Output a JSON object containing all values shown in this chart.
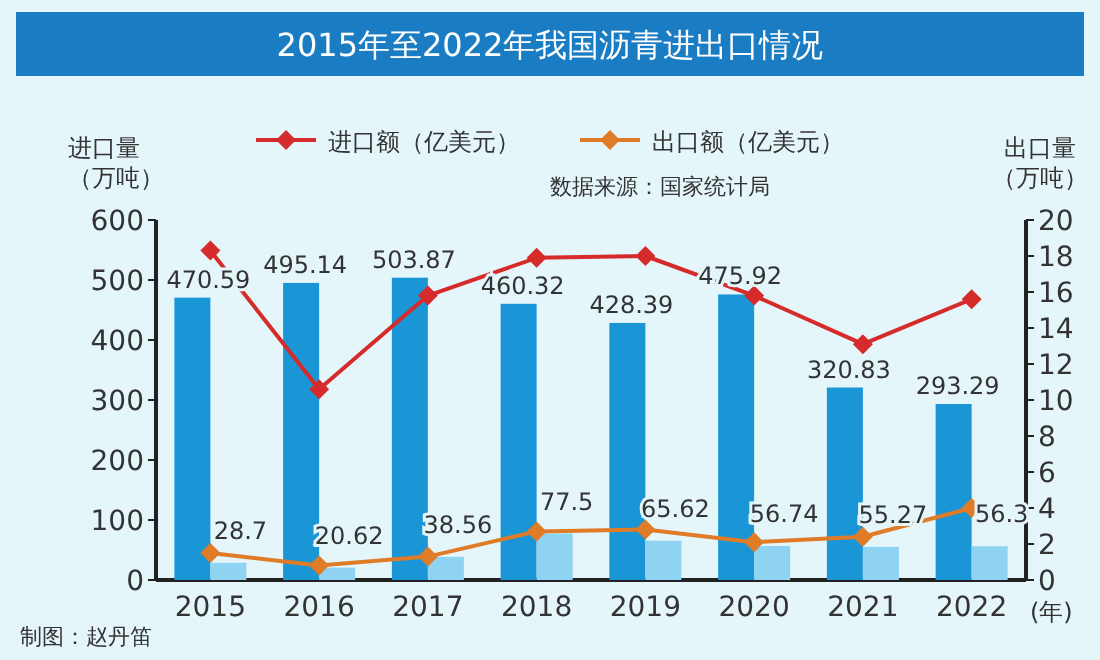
{
  "chart_data": {
    "type": "bar",
    "title": "2015年至2022年我国沥青进出口情况",
    "subtitle": "数据来源：国家统计局",
    "ylabel": "进口量（万吨）",
    "y2label": "出口量（万吨）",
    "xlabel": "(年)",
    "annotations": [
      "制图：赵丹笛"
    ],
    "categories": [
      "2015",
      "2016",
      "2017",
      "2018",
      "2019",
      "2020",
      "2021",
      "2022"
    ],
    "series": [
      {
        "color": "#1a95d5",
        "values": [
          470.59,
          495.14,
          503.87,
          460.32,
          428.39,
          475.92,
          320.83,
          293.29
        ],
        "value_labels": [
          "470.59",
          "495.14",
          "503.87",
          "460.32",
          "428.39",
          "475.92",
          "320.83",
          "293.29"
        ]
      },
      {
        "color": "#8ed3f2",
        "values": [
          28.7,
          20.62,
          38.56,
          77.5,
          65.62,
          56.74,
          55.27,
          56.3
        ],
        "value_labels": [
          "28.7",
          "20.62",
          "38.56",
          "77.5",
          "65.62",
          "56.74",
          "55.27",
          "56.3"
        ]
      },
      {
        "type": "line",
        "name": "进口额（亿美元）",
        "color": "#d62b2b",
        "axis": "y2",
        "values": [
          18.3,
          10.6,
          15.8,
          17.9,
          18.0,
          15.8,
          13.1,
          15.6
        ]
      },
      {
        "type": "line",
        "name": "出口额（亿美元）",
        "color": "#e07b27",
        "axis": "y2",
        "values": [
          1.5,
          0.8,
          1.3,
          2.7,
          2.8,
          2.1,
          2.4,
          4.0
        ]
      }
    ],
    "ylim": [
      0,
      600
    ],
    "yticks": [
      0,
      100,
      200,
      300,
      400,
      500,
      600
    ],
    "y2lim": [
      0,
      20
    ],
    "y2ticks": [
      0,
      2,
      4,
      6,
      8,
      10,
      12,
      14,
      16,
      18,
      20
    ],
    "legend": "top",
    "marker": "diamond",
    "line_style": "solid",
    "grid": false
  }
}
